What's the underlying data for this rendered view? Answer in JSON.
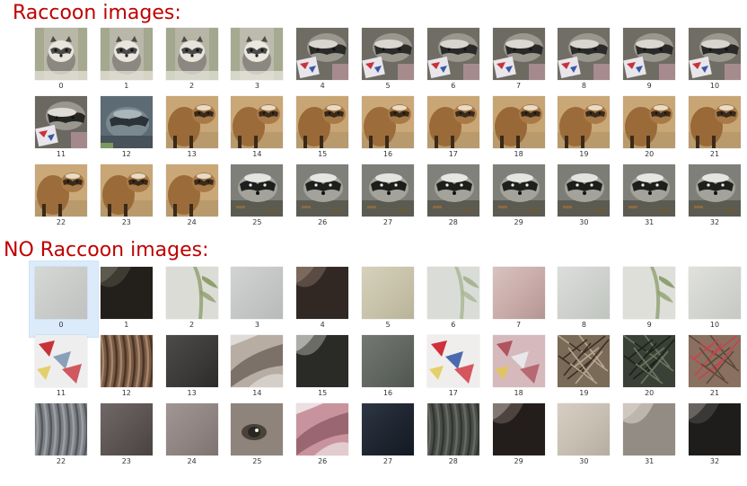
{
  "sections": [
    {
      "id": "raccoon",
      "title": "Raccoon images:",
      "items": [
        {
          "label": "0",
          "kind": "raccoon-portrait",
          "colors": [
            "#b9b8a8",
            "#4a4a48",
            "#e8e6dc"
          ]
        },
        {
          "label": "1",
          "kind": "raccoon-portrait",
          "colors": [
            "#b8b7a9",
            "#4b4b49",
            "#e9e7dd"
          ]
        },
        {
          "label": "2",
          "kind": "raccoon-portrait",
          "colors": [
            "#b6b5a6",
            "#4a4a48",
            "#e7e5db"
          ]
        },
        {
          "label": "3",
          "kind": "raccoon-portrait",
          "colors": [
            "#bcbbad",
            "#4c4c4a",
            "#ebe9df"
          ]
        },
        {
          "label": "4",
          "kind": "raccoon-eating",
          "colors": [
            "#6f6c64",
            "#2a2a28",
            "#d9d6cf"
          ]
        },
        {
          "label": "5",
          "kind": "raccoon-eating",
          "colors": [
            "#6e6b63",
            "#2b2b29",
            "#dad7d0"
          ]
        },
        {
          "label": "6",
          "kind": "raccoon-eating",
          "colors": [
            "#706d65",
            "#2a2a28",
            "#d8d5ce"
          ]
        },
        {
          "label": "7",
          "kind": "raccoon-eating",
          "colors": [
            "#6d6a62",
            "#292927",
            "#dbd8d1"
          ]
        },
        {
          "label": "8",
          "kind": "raccoon-eating",
          "colors": [
            "#716e66",
            "#2b2b29",
            "#d9d6cf"
          ]
        },
        {
          "label": "9",
          "kind": "raccoon-eating",
          "colors": [
            "#6f6c64",
            "#2a2a28",
            "#dad7d0"
          ]
        },
        {
          "label": "10",
          "kind": "raccoon-eating",
          "colors": [
            "#706d65",
            "#2a2a28",
            "#d8d5ce"
          ]
        },
        {
          "label": "11",
          "kind": "raccoon-eating",
          "colors": [
            "#6a6860",
            "#262624",
            "#e0ddd6"
          ]
        },
        {
          "label": "12",
          "kind": "raccoon-blue",
          "colors": [
            "#5d6c74",
            "#2c3338",
            "#aab6bc"
          ]
        },
        {
          "label": "13",
          "kind": "raccoon-brown",
          "colors": [
            "#9a6a38",
            "#3a2a1a",
            "#c9a676"
          ]
        },
        {
          "label": "14",
          "kind": "raccoon-brown",
          "colors": [
            "#9b6b39",
            "#3b2b1b",
            "#caa777"
          ]
        },
        {
          "label": "15",
          "kind": "raccoon-brown",
          "colors": [
            "#996937",
            "#392919",
            "#c8a575"
          ]
        },
        {
          "label": "16",
          "kind": "raccoon-brown",
          "colors": [
            "#9c6c3a",
            "#3a2a1a",
            "#cba878"
          ]
        },
        {
          "label": "17",
          "kind": "raccoon-brown",
          "colors": [
            "#9a6a38",
            "#3b2b1b",
            "#c9a676"
          ]
        },
        {
          "label": "18",
          "kind": "raccoon-brown",
          "colors": [
            "#986836",
            "#392919",
            "#c7a474"
          ]
        },
        {
          "label": "19",
          "kind": "raccoon-brown",
          "colors": [
            "#9b6b39",
            "#3a2a1a",
            "#caa777"
          ]
        },
        {
          "label": "20",
          "kind": "raccoon-brown",
          "colors": [
            "#9a6a38",
            "#3b2b1b",
            "#c9a676"
          ]
        },
        {
          "label": "21",
          "kind": "raccoon-brown",
          "colors": [
            "#996937",
            "#3a2a1a",
            "#c8a575"
          ]
        },
        {
          "label": "22",
          "kind": "raccoon-brown",
          "colors": [
            "#9c6c3a",
            "#3a2a1a",
            "#cba878"
          ]
        },
        {
          "label": "23",
          "kind": "raccoon-brown",
          "colors": [
            "#9a6a38",
            "#392919",
            "#c9a676"
          ]
        },
        {
          "label": "24",
          "kind": "raccoon-brown",
          "colors": [
            "#9b6b39",
            "#3b2b1b",
            "#caa777"
          ]
        },
        {
          "label": "25",
          "kind": "raccoon-ground",
          "colors": [
            "#7e7f78",
            "#1e1e1c",
            "#e4e4e0"
          ]
        },
        {
          "label": "26",
          "kind": "raccoon-ground",
          "colors": [
            "#7f8079",
            "#1f1f1d",
            "#e5e5e1"
          ]
        },
        {
          "label": "27",
          "kind": "raccoon-ground",
          "colors": [
            "#7d7e77",
            "#1d1d1b",
            "#e3e3df"
          ]
        },
        {
          "label": "28",
          "kind": "raccoon-ground",
          "colors": [
            "#80817a",
            "#1e1e1c",
            "#e6e6e2"
          ]
        },
        {
          "label": "29",
          "kind": "raccoon-ground",
          "colors": [
            "#7e7f78",
            "#1f1f1d",
            "#e4e4e0"
          ]
        },
        {
          "label": "30",
          "kind": "raccoon-ground",
          "colors": [
            "#7c7d76",
            "#1d1d1b",
            "#e2e2de"
          ]
        },
        {
          "label": "31",
          "kind": "raccoon-ground",
          "colors": [
            "#7f8079",
            "#1e1e1c",
            "#e5e5e1"
          ]
        },
        {
          "label": "32",
          "kind": "raccoon-ground",
          "colors": [
            "#7e7f78",
            "#1f1f1d",
            "#e4e4e0"
          ]
        }
      ]
    },
    {
      "id": "noraccoon",
      "title": "NO Raccoon images:",
      "items": [
        {
          "label": "0",
          "kind": "flat",
          "colors": [
            "#c9cbc9",
            "#bfc2c0",
            "#d6d8d6"
          ],
          "selected": true
        },
        {
          "label": "1",
          "kind": "dark-diag",
          "colors": [
            "#3e3b32",
            "#1e1c17",
            "#6a6658"
          ]
        },
        {
          "label": "2",
          "kind": "leaf",
          "colors": [
            "#d0d3cb",
            "#8f9e6c",
            "#eaebe6"
          ]
        },
        {
          "label": "3",
          "kind": "flat",
          "colors": [
            "#c4c6c5",
            "#b7bab8",
            "#d2d4d3"
          ]
        },
        {
          "label": "4",
          "kind": "dark-diag",
          "colors": [
            "#5a4b43",
            "#2a221e",
            "#8a7668"
          ]
        },
        {
          "label": "5",
          "kind": "flat",
          "colors": [
            "#c7c2a9",
            "#b8b398",
            "#d5d1bb"
          ]
        },
        {
          "label": "6",
          "kind": "leaf",
          "colors": [
            "#d3d6cf",
            "#a9b592",
            "#e7e9e4"
          ]
        },
        {
          "label": "7",
          "kind": "flat",
          "colors": [
            "#c8aba8",
            "#b49593",
            "#d8c2bf"
          ]
        },
        {
          "label": "8",
          "kind": "flat",
          "colors": [
            "#cdd0cc",
            "#c0c4bf",
            "#dcdedb"
          ]
        },
        {
          "label": "9",
          "kind": "leaf",
          "colors": [
            "#d6d8d0",
            "#8fa071",
            "#ebece7"
          ]
        },
        {
          "label": "10",
          "kind": "flat",
          "colors": [
            "#d2d4d0",
            "#c6c8c4",
            "#e0e1de"
          ]
        },
        {
          "label": "11",
          "kind": "paper",
          "colors": [
            "#eeeeee",
            "#c8323a",
            "#8aa0b8"
          ]
        },
        {
          "label": "12",
          "kind": "fur",
          "colors": [
            "#7a5a44",
            "#3e2c1e",
            "#b0927a"
          ]
        },
        {
          "label": "13",
          "kind": "flat",
          "colors": [
            "#3c3b39",
            "#2c2b29",
            "#4c4b49"
          ]
        },
        {
          "label": "14",
          "kind": "fur-light",
          "colors": [
            "#b7ada3",
            "#e9e6e2",
            "#7c7168"
          ]
        },
        {
          "label": "15",
          "kind": "dark-diag",
          "colors": [
            "#6b6c66",
            "#1e1f1c",
            "#c8c9c4"
          ]
        },
        {
          "label": "16",
          "kind": "flat",
          "colors": [
            "#616660",
            "#50554f",
            "#737872"
          ]
        },
        {
          "label": "17",
          "kind": "paper",
          "colors": [
            "#f0eeec",
            "#d0303a",
            "#4a6ab0"
          ]
        },
        {
          "label": "18",
          "kind": "paper",
          "colors": [
            "#d6b9bd",
            "#b0545e",
            "#e8e8ea"
          ]
        },
        {
          "label": "19",
          "kind": "twigs",
          "colors": [
            "#7a6a58",
            "#3a3026",
            "#b8a890"
          ]
        },
        {
          "label": "20",
          "kind": "twigs",
          "colors": [
            "#3a4036",
            "#1c201a",
            "#6a7860"
          ]
        },
        {
          "label": "21",
          "kind": "twigs",
          "colors": [
            "#8a7060",
            "#c8434e",
            "#5a4a3a"
          ]
        },
        {
          "label": "22",
          "kind": "fur",
          "colors": [
            "#7c8084",
            "#4a4e52",
            "#a4a8ac"
          ]
        },
        {
          "label": "23",
          "kind": "flat",
          "colors": [
            "#5c5452",
            "#4a4240",
            "#706866"
          ]
        },
        {
          "label": "24",
          "kind": "flat",
          "colors": [
            "#8f8482",
            "#7e7371",
            "#a19694"
          ]
        },
        {
          "label": "25",
          "kind": "eye",
          "colors": [
            "#8e847c",
            "#2a2622",
            "#f2f2f2"
          ]
        },
        {
          "label": "26",
          "kind": "fur-light",
          "colors": [
            "#c9939e",
            "#f4f2f2",
            "#9a6672"
          ]
        },
        {
          "label": "27",
          "kind": "flat",
          "colors": [
            "#1e2530",
            "#141a22",
            "#2e3644"
          ]
        },
        {
          "label": "28",
          "kind": "fur",
          "colors": [
            "#4a4e48",
            "#2c302b",
            "#6e726c"
          ]
        },
        {
          "label": "29",
          "kind": "dark-diag",
          "colors": [
            "#4d4440",
            "#1c1816",
            "#9a8e86"
          ]
        },
        {
          "label": "30",
          "kind": "flat",
          "colors": [
            "#c6beb0",
            "#b5ad9f",
            "#d6cec0"
          ]
        },
        {
          "label": "31",
          "kind": "dark-diag",
          "colors": [
            "#bdb6ad",
            "#8c857c",
            "#d6d0c8"
          ]
        },
        {
          "label": "32",
          "kind": "dark-diag",
          "colors": [
            "#3a3836",
            "#1a1918",
            "#7a7674"
          ]
        }
      ]
    }
  ],
  "colors": {
    "title": "#c00000",
    "selection": "#dcebfa",
    "label": "#333333"
  }
}
